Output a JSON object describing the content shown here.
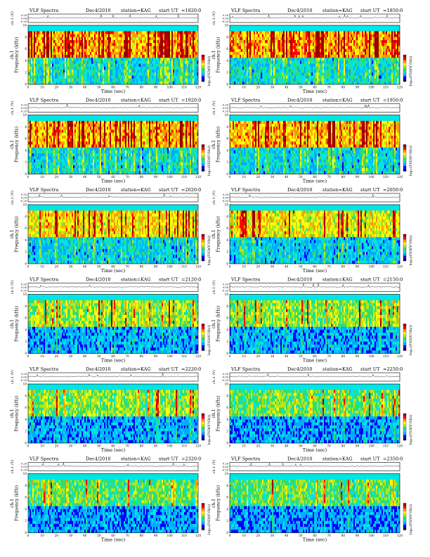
{
  "header": {
    "title": "VLF Spectra",
    "date": "Dec4/2010",
    "station": "station=KAG",
    "start_prefix": "start  UT"
  },
  "axes": {
    "top_ylabel": "ch.1 (V)",
    "top_yticks": [
      "0.20",
      "0.00",
      "-0.20"
    ],
    "spec_ylabel": "ch.1\nFrequency  (kHz)",
    "spec_ylabel_line1": "ch.1",
    "spec_ylabel_line2": "Frequency  (kHz)",
    "spec_yticks": [
      "0",
      "2",
      "4",
      "6",
      "8",
      "10"
    ],
    "xlabel": "Time  (sec)",
    "xticks": [
      "0",
      "10",
      "20",
      "30",
      "40",
      "50",
      "60",
      "70",
      "80",
      "90",
      "100",
      "110",
      "120"
    ],
    "colorbar_label": "log₁₀(PSD(V²/Hz))",
    "colorbar_ticks": [
      "-",
      "-"
    ]
  },
  "panels": [
    {
      "start_ut": "=1820:0",
      "row": 0,
      "col": 0,
      "activity": 0.85,
      "noise_floor": 0.25
    },
    {
      "start_ut": "=1850:0",
      "row": 0,
      "col": 1,
      "activity": 0.85,
      "noise_floor": 0.25
    },
    {
      "start_ut": "=1920:0",
      "row": 1,
      "col": 0,
      "activity": 0.8,
      "noise_floor": 0.3
    },
    {
      "start_ut": "=1950:0",
      "row": 1,
      "col": 1,
      "activity": 0.8,
      "noise_floor": 0.3
    },
    {
      "start_ut": "=2020:0",
      "row": 2,
      "col": 0,
      "activity": 0.7,
      "noise_floor": 0.35
    },
    {
      "start_ut": "=2050:0",
      "row": 2,
      "col": 1,
      "activity": 0.65,
      "noise_floor": 0.4
    },
    {
      "start_ut": "=2120:0",
      "row": 3,
      "col": 0,
      "activity": 0.5,
      "noise_floor": 0.55
    },
    {
      "start_ut": "=2150:0",
      "row": 3,
      "col": 1,
      "activity": 0.45,
      "noise_floor": 0.55
    },
    {
      "start_ut": "=2220:0",
      "row": 4,
      "col": 0,
      "activity": 0.45,
      "noise_floor": 0.55
    },
    {
      "start_ut": "=2250:0",
      "row": 4,
      "col": 1,
      "activity": 0.4,
      "noise_floor": 0.6
    },
    {
      "start_ut": "=2320:0",
      "row": 5,
      "col": 0,
      "activity": 0.35,
      "noise_floor": 0.65
    },
    {
      "start_ut": "=2350:0",
      "row": 5,
      "col": 1,
      "activity": 0.35,
      "noise_floor": 0.65
    }
  ],
  "chart_data": {
    "type": "heatmap",
    "x_range": [
      0,
      120
    ],
    "y_range_khz": [
      0,
      10
    ],
    "waveform_range_v": [
      -0.2,
      0.2
    ],
    "colormap": [
      "#00006a",
      "#0000ff",
      "#00aaff",
      "#00e5e5",
      "#33dd66",
      "#b5e61d",
      "#ffff00",
      "#ff9900",
      "#ff0000",
      "#990000"
    ],
    "grid": false
  }
}
